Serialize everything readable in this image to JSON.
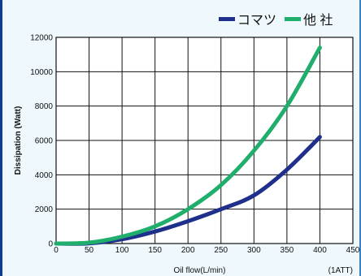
{
  "chart_data": {
    "type": "line",
    "title": "",
    "xlabel": "Oil flow(L/min)",
    "ylabel": "Dissipation (Watt)",
    "note": "(1ATT)",
    "xlim": [
      0,
      450
    ],
    "ylim": [
      0,
      12000
    ],
    "x_ticks": [
      0,
      50,
      100,
      150,
      200,
      250,
      300,
      350,
      400,
      450
    ],
    "y_ticks": [
      0,
      2000,
      4000,
      6000,
      8000,
      10000,
      12000
    ],
    "grid": true,
    "legend_position": "top-right",
    "series": [
      {
        "name": "コマツ",
        "color": "#1f2f8c",
        "x": [
          0,
          50,
          100,
          150,
          200,
          250,
          300,
          350,
          400
        ],
        "y": [
          0,
          10,
          250,
          700,
          1300,
          2000,
          2800,
          4300,
          6200
        ]
      },
      {
        "name": "他 社",
        "color": "#1fae6b",
        "x": [
          0,
          50,
          100,
          150,
          200,
          250,
          300,
          350,
          400
        ],
        "y": [
          0,
          50,
          400,
          1000,
          2000,
          3400,
          5400,
          8000,
          11400
        ]
      }
    ]
  }
}
